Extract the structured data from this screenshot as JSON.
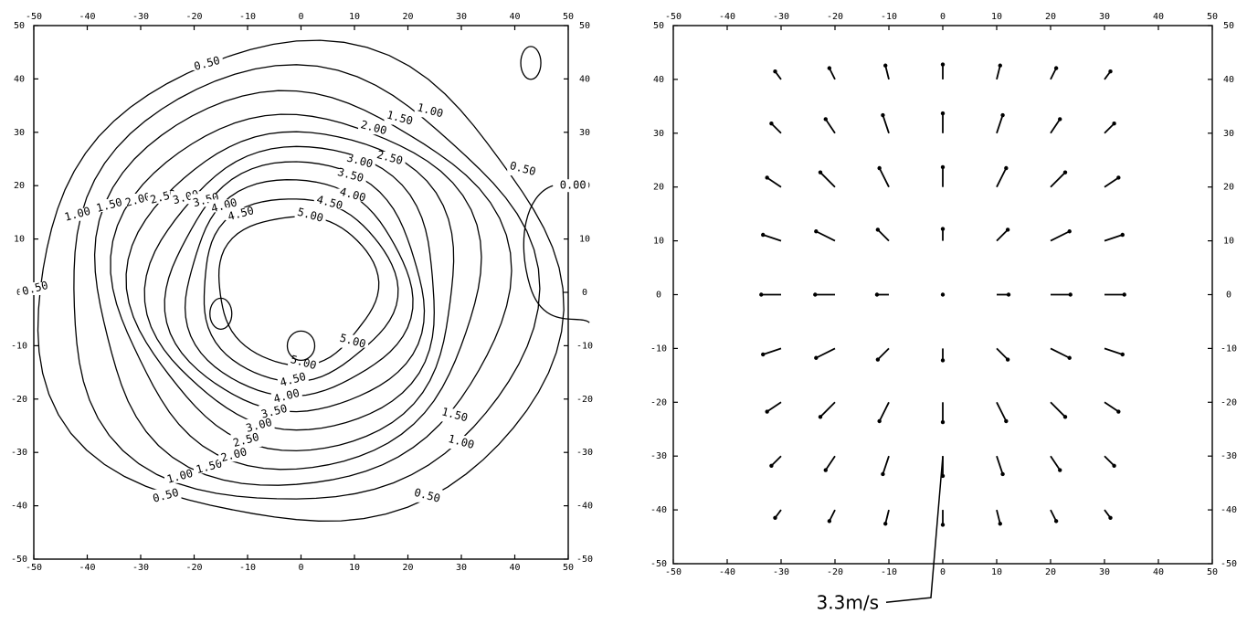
{
  "chart_data": [
    {
      "type": "contour",
      "x_ticks": [
        -50,
        -40,
        -30,
        -20,
        -10,
        0,
        10,
        20,
        30,
        40,
        50
      ],
      "y_ticks": [
        50,
        40,
        30,
        20,
        10,
        0,
        -10,
        -20,
        -30,
        -40,
        -50
      ],
      "xlim": [
        -50,
        50
      ],
      "ylim": [
        -50,
        50
      ],
      "contour_levels": [
        "0.00",
        "0.50",
        "1.00",
        "1.50",
        "2.00",
        "2.50",
        "3.00",
        "3.50",
        "4.00",
        "4.50",
        "5.00"
      ],
      "center": [
        0,
        0
      ]
    },
    {
      "type": "vector",
      "x_ticks": [
        -50,
        -40,
        -30,
        -20,
        -10,
        0,
        10,
        20,
        30,
        40,
        50
      ],
      "y_ticks": [
        50,
        40,
        30,
        20,
        10,
        0,
        -10,
        -20,
        -30,
        -40,
        -50
      ],
      "xlim": [
        -50,
        50
      ],
      "ylim": [
        -50,
        50
      ],
      "grid_x": [
        -30,
        -20,
        -10,
        0,
        10,
        20,
        30
      ],
      "grid_y": [
        40,
        30,
        20,
        10,
        0,
        -10,
        -20,
        -30,
        -40
      ],
      "scale_vector": {
        "label": "3.3m/s",
        "anchor": [
          0,
          -30
        ]
      }
    }
  ]
}
